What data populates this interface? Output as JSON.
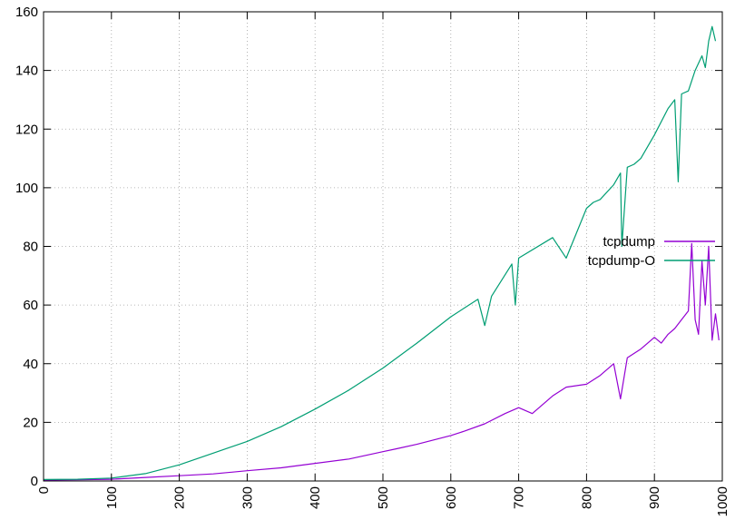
{
  "chart_data": {
    "type": "line",
    "title": "",
    "xlabel": "",
    "ylabel": "",
    "xlim": [
      0,
      1000
    ],
    "ylim": [
      0,
      160
    ],
    "xticks": [
      0,
      100,
      200,
      300,
      400,
      500,
      600,
      700,
      800,
      900,
      1000
    ],
    "xtick_labels": [
      "0",
      "100",
      "200",
      "300",
      "400",
      "500",
      "600",
      "700",
      "800",
      "900",
      "1000"
    ],
    "yticks": [
      0,
      20,
      40,
      60,
      80,
      100,
      120,
      140,
      160
    ],
    "ytick_labels": [
      "0",
      "20",
      "40",
      "60",
      "80",
      "100",
      "120",
      "140",
      "160"
    ],
    "grid": true,
    "legend_position": "right",
    "series": [
      {
        "name": "tcpdump",
        "color": "#9400d3",
        "x": [
          0,
          50,
          100,
          150,
          200,
          250,
          300,
          350,
          400,
          450,
          500,
          520,
          550,
          600,
          620,
          650,
          680,
          700,
          720,
          750,
          770,
          800,
          820,
          840,
          850,
          860,
          880,
          900,
          910,
          920,
          930,
          940,
          950,
          955,
          960,
          965,
          970,
          975,
          980,
          985,
          990,
          995
        ],
        "y": [
          0.3,
          0.4,
          0.6,
          1.2,
          1.8,
          2.4,
          3.5,
          4.5,
          6.0,
          7.5,
          10.0,
          11.0,
          12.5,
          15.5,
          17.0,
          19.5,
          23.0,
          25.0,
          23.0,
          29.0,
          32.0,
          33.0,
          36.0,
          40.0,
          28.0,
          42.0,
          45.0,
          49.0,
          47.0,
          50.0,
          52.0,
          55.0,
          58.0,
          81.0,
          55.0,
          50.0,
          75.0,
          60.0,
          80.0,
          48.0,
          57.0,
          48.0
        ]
      },
      {
        "name": "tcpdump-O",
        "color": "#009e73",
        "x": [
          0,
          50,
          100,
          150,
          200,
          250,
          300,
          350,
          400,
          450,
          500,
          550,
          600,
          640,
          650,
          660,
          690,
          695,
          700,
          750,
          770,
          800,
          810,
          820,
          840,
          850,
          852,
          860,
          870,
          880,
          900,
          920,
          930,
          935,
          940,
          950,
          960,
          970,
          975,
          980,
          985,
          990
        ],
        "y": [
          0.5,
          0.6,
          1.0,
          2.5,
          5.5,
          9.5,
          13.5,
          18.5,
          24.5,
          31.0,
          38.5,
          47.0,
          56.0,
          62.0,
          53.0,
          63.0,
          74.0,
          60.0,
          76.0,
          83.0,
          76.0,
          93.0,
          95.0,
          96.0,
          101.0,
          105.0,
          80.0,
          107.0,
          108.0,
          110.0,
          118.0,
          127.0,
          130.0,
          102.0,
          132.0,
          133.0,
          140.0,
          145.0,
          141.0,
          150.0,
          155.0,
          150.0
        ]
      }
    ]
  }
}
